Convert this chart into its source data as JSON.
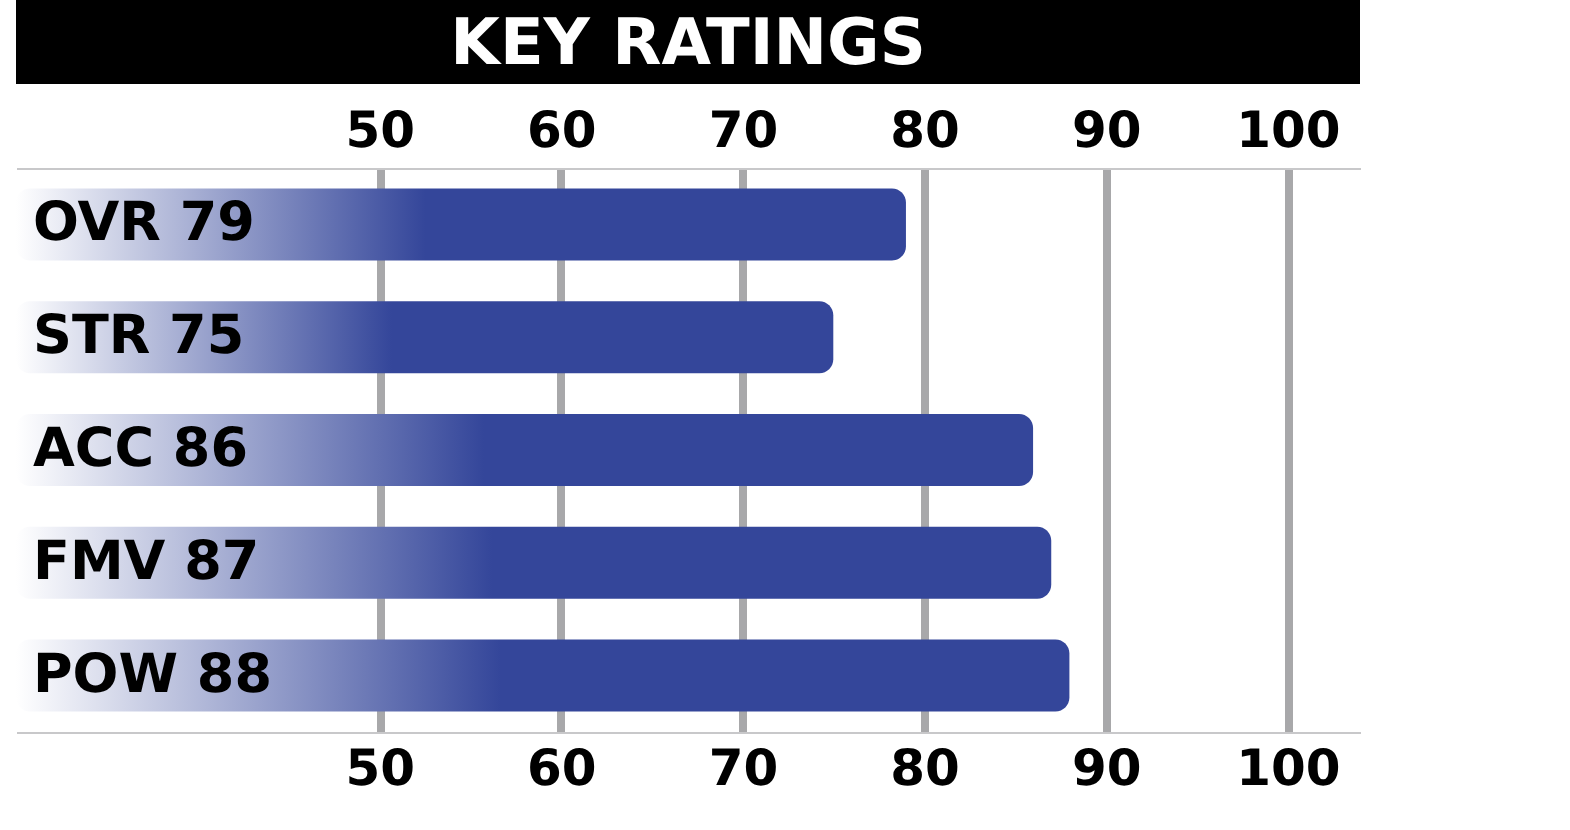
{
  "chart_data": {
    "type": "bar",
    "orientation": "horizontal",
    "title": "KEY RATINGS",
    "categories": [
      "OVR 79",
      "STR 75",
      "ACC 86",
      "FMV 87",
      "POW 88"
    ],
    "values": [
      79,
      75,
      86,
      87,
      88
    ],
    "color": "#34469a",
    "xlim": [
      30,
      104
    ],
    "xticks": [
      50,
      60,
      70,
      80,
      90,
      100
    ],
    "x2lim": [
      30,
      104
    ],
    "x2ticks": [
      50,
      60,
      70,
      80,
      90,
      100
    ],
    "grid": "x"
  }
}
